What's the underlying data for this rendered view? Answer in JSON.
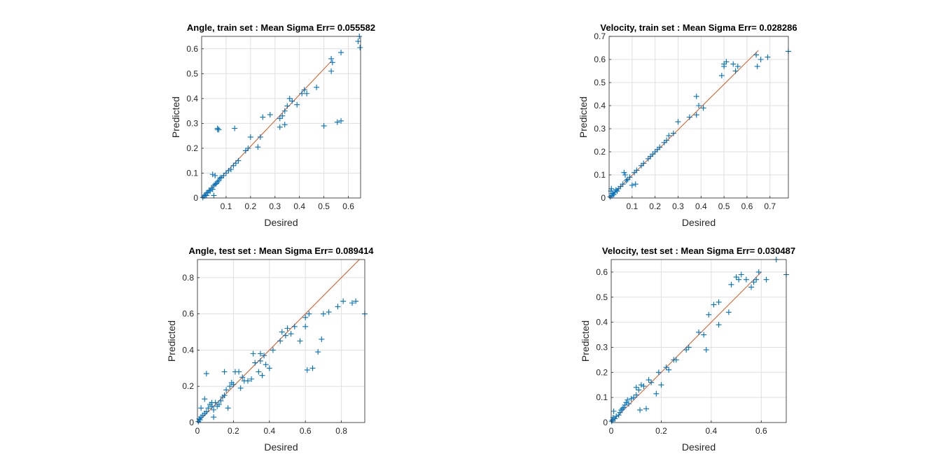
{
  "colors": {
    "marker": "#0072BD",
    "fit_line": "#D95319",
    "axes": "#262626",
    "grid": "#dfdfdf"
  },
  "chart_data": [
    {
      "type": "scatter",
      "title": "Angle, train set :  Mean Sigma Err= 0.055582",
      "xlabel": "Desired",
      "ylabel": "Predicted",
      "xlim": [
        0,
        0.65
      ],
      "ylim": [
        0,
        0.65
      ],
      "xticks": [
        0.1,
        0.2,
        0.3,
        0.4,
        0.5,
        0.6
      ],
      "xtick_labels": [
        "0.1",
        "0.2",
        "0.3",
        "0.4",
        "0.5",
        "0.6"
      ],
      "yticks": [
        0,
        0.1,
        0.2,
        0.3,
        0.4,
        0.5,
        0.6
      ],
      "ytick_labels": [
        "0",
        "0.1",
        "0.2",
        "0.3",
        "0.4",
        "0.5",
        "0.6"
      ],
      "grid": true,
      "marker": "+",
      "fit_line": [
        [
          0,
          0
        ],
        [
          0.53,
          0.55
        ]
      ],
      "points": [
        [
          0.005,
          0.002
        ],
        [
          0.01,
          0.008
        ],
        [
          0.015,
          0.012
        ],
        [
          0.02,
          0.02
        ],
        [
          0.025,
          0.022
        ],
        [
          0.03,
          0.03
        ],
        [
          0.035,
          0.028
        ],
        [
          0.04,
          0.04
        ],
        [
          0.045,
          0.035
        ],
        [
          0.05,
          0.05
        ],
        [
          0.055,
          0.055
        ],
        [
          0.06,
          0.058
        ],
        [
          0.065,
          0.065
        ],
        [
          0.07,
          0.07
        ],
        [
          0.075,
          0.08
        ],
        [
          0.08,
          0.082
        ],
        [
          0.09,
          0.09
        ],
        [
          0.1,
          0.1
        ],
        [
          0.11,
          0.11
        ],
        [
          0.12,
          0.115
        ],
        [
          0.13,
          0.13
        ],
        [
          0.14,
          0.14
        ],
        [
          0.15,
          0.15
        ],
        [
          0.045,
          0.095
        ],
        [
          0.055,
          0.09
        ],
        [
          0.05,
          0.01
        ],
        [
          0.02,
          0.01
        ],
        [
          0.065,
          0.275
        ],
        [
          0.07,
          0.275
        ],
        [
          0.065,
          0.28
        ],
        [
          0.135,
          0.28
        ],
        [
          0.18,
          0.19
        ],
        [
          0.19,
          0.2
        ],
        [
          0.2,
          0.245
        ],
        [
          0.23,
          0.205
        ],
        [
          0.24,
          0.245
        ],
        [
          0.25,
          0.325
        ],
        [
          0.28,
          0.335
        ],
        [
          0.32,
          0.32
        ],
        [
          0.32,
          0.285
        ],
        [
          0.33,
          0.33
        ],
        [
          0.34,
          0.35
        ],
        [
          0.34,
          0.295
        ],
        [
          0.35,
          0.37
        ],
        [
          0.36,
          0.4
        ],
        [
          0.37,
          0.39
        ],
        [
          0.39,
          0.375
        ],
        [
          0.41,
          0.42
        ],
        [
          0.42,
          0.435
        ],
        [
          0.43,
          0.42
        ],
        [
          0.47,
          0.445
        ],
        [
          0.5,
          0.29
        ],
        [
          0.53,
          0.51
        ],
        [
          0.53,
          0.56
        ],
        [
          0.535,
          0.545
        ],
        [
          0.555,
          0.305
        ],
        [
          0.57,
          0.31
        ],
        [
          0.57,
          0.585
        ],
        [
          0.64,
          0.63
        ],
        [
          0.645,
          0.65
        ],
        [
          0.648,
          0.605
        ]
      ]
    },
    {
      "type": "scatter",
      "title": "Velocity, train set :  Mean Sigma Err= 0.028286",
      "xlabel": "Desired",
      "ylabel": "Predicted",
      "xlim": [
        0,
        0.78
      ],
      "ylim": [
        0,
        0.7
      ],
      "xticks": [
        0.1,
        0.2,
        0.3,
        0.4,
        0.5,
        0.6,
        0.7
      ],
      "xtick_labels": [
        "0.1",
        "0.2",
        "0.3",
        "0.4",
        "0.5",
        "0.6",
        "0.7"
      ],
      "yticks": [
        0,
        0.1,
        0.2,
        0.3,
        0.4,
        0.5,
        0.6,
        0.7
      ],
      "ytick_labels": [
        "0",
        "0.1",
        "0.2",
        "0.3",
        "0.4",
        "0.5",
        "0.6",
        "0.7"
      ],
      "grid": true,
      "marker": "+",
      "fit_line": [
        [
          0,
          0
        ],
        [
          0.65,
          0.64
        ]
      ],
      "points": [
        [
          0.005,
          0.005
        ],
        [
          0.008,
          0.03
        ],
        [
          0.01,
          0.04
        ],
        [
          0.012,
          0.01
        ],
        [
          0.015,
          0.02
        ],
        [
          0.02,
          0.015
        ],
        [
          0.025,
          0.025
        ],
        [
          0.03,
          0.035
        ],
        [
          0.035,
          0.03
        ],
        [
          0.04,
          0.04
        ],
        [
          0.05,
          0.05
        ],
        [
          0.06,
          0.06
        ],
        [
          0.065,
          0.11
        ],
        [
          0.07,
          0.1
        ],
        [
          0.075,
          0.075
        ],
        [
          0.08,
          0.08
        ],
        [
          0.09,
          0.09
        ],
        [
          0.1,
          0.055
        ],
        [
          0.11,
          0.11
        ],
        [
          0.115,
          0.06
        ],
        [
          0.12,
          0.12
        ],
        [
          0.14,
          0.14
        ],
        [
          0.15,
          0.15
        ],
        [
          0.17,
          0.17
        ],
        [
          0.18,
          0.18
        ],
        [
          0.19,
          0.19
        ],
        [
          0.2,
          0.2
        ],
        [
          0.21,
          0.21
        ],
        [
          0.22,
          0.22
        ],
        [
          0.24,
          0.24
        ],
        [
          0.25,
          0.25
        ],
        [
          0.26,
          0.27
        ],
        [
          0.28,
          0.28
        ],
        [
          0.3,
          0.33
        ],
        [
          0.35,
          0.35
        ],
        [
          0.38,
          0.44
        ],
        [
          0.38,
          0.36
        ],
        [
          0.39,
          0.4
        ],
        [
          0.41,
          0.39
        ],
        [
          0.49,
          0.53
        ],
        [
          0.5,
          0.58
        ],
        [
          0.51,
          0.59
        ],
        [
          0.5,
          0.57
        ],
        [
          0.54,
          0.58
        ],
        [
          0.55,
          0.55
        ],
        [
          0.56,
          0.57
        ],
        [
          0.64,
          0.62
        ],
        [
          0.645,
          0.57
        ],
        [
          0.66,
          0.6
        ],
        [
          0.69,
          0.61
        ],
        [
          0.78,
          0.635
        ]
      ]
    },
    {
      "type": "scatter",
      "title": "Angle, test set :  Mean Sigma Err= 0.089414",
      "xlabel": "Desired",
      "ylabel": "Predicted",
      "xlim": [
        0,
        0.93
      ],
      "ylim": [
        0,
        0.9
      ],
      "xticks": [
        0,
        0.2,
        0.4,
        0.6,
        0.8
      ],
      "xtick_labels": [
        "0",
        "0.2",
        "0.4",
        "0.6",
        "0.8"
      ],
      "yticks": [
        0,
        0.2,
        0.4,
        0.6,
        0.8
      ],
      "ytick_labels": [
        "0",
        "0.2",
        "0.4",
        "0.6",
        "0.8"
      ],
      "grid": true,
      "marker": "+",
      "fit_line": [
        [
          0,
          0
        ],
        [
          0.91,
          0.91
        ]
      ],
      "points": [
        [
          0.005,
          0.005
        ],
        [
          0.01,
          0.02
        ],
        [
          0.015,
          0.015
        ],
        [
          0.02,
          0.03
        ],
        [
          0.02,
          0.08
        ],
        [
          0.03,
          0.04
        ],
        [
          0.04,
          0.05
        ],
        [
          0.04,
          0.13
        ],
        [
          0.05,
          0.06
        ],
        [
          0.05,
          0.27
        ],
        [
          0.06,
          0.08
        ],
        [
          0.07,
          0.1
        ],
        [
          0.08,
          0.09
        ],
        [
          0.08,
          0.11
        ],
        [
          0.09,
          0.07
        ],
        [
          0.09,
          0.03
        ],
        [
          0.1,
          0.11
        ],
        [
          0.11,
          0.09
        ],
        [
          0.12,
          0.1
        ],
        [
          0.13,
          0.12
        ],
        [
          0.14,
          0.14
        ],
        [
          0.15,
          0.28
        ],
        [
          0.15,
          0.15
        ],
        [
          0.16,
          0.18
        ],
        [
          0.17,
          0.08
        ],
        [
          0.18,
          0.2
        ],
        [
          0.19,
          0.22
        ],
        [
          0.2,
          0.21
        ],
        [
          0.21,
          0.28
        ],
        [
          0.23,
          0.28
        ],
        [
          0.24,
          0.19
        ],
        [
          0.25,
          0.25
        ],
        [
          0.26,
          0.23
        ],
        [
          0.28,
          0.23
        ],
        [
          0.3,
          0.24
        ],
        [
          0.31,
          0.38
        ],
        [
          0.32,
          0.33
        ],
        [
          0.34,
          0.28
        ],
        [
          0.35,
          0.38
        ],
        [
          0.35,
          0.34
        ],
        [
          0.36,
          0.26
        ],
        [
          0.37,
          0.37
        ],
        [
          0.38,
          0.32
        ],
        [
          0.4,
          0.3
        ],
        [
          0.42,
          0.4
        ],
        [
          0.46,
          0.45
        ],
        [
          0.47,
          0.5
        ],
        [
          0.49,
          0.48
        ],
        [
          0.5,
          0.52
        ],
        [
          0.52,
          0.49
        ],
        [
          0.54,
          0.53
        ],
        [
          0.57,
          0.45
        ],
        [
          0.6,
          0.58
        ],
        [
          0.6,
          0.53
        ],
        [
          0.61,
          0.29
        ],
        [
          0.64,
          0.3
        ],
        [
          0.62,
          0.6
        ],
        [
          0.67,
          0.39
        ],
        [
          0.69,
          0.46
        ],
        [
          0.7,
          0.6
        ],
        [
          0.73,
          0.61
        ],
        [
          0.78,
          0.64
        ],
        [
          0.81,
          0.67
        ],
        [
          0.86,
          0.66
        ],
        [
          0.88,
          0.67
        ],
        [
          0.93,
          0.6
        ]
      ]
    },
    {
      "type": "scatter",
      "title": "Velocity, test set :  Mean Sigma Err= 0.030487",
      "xlabel": "Desired",
      "ylabel": "Predicted",
      "xlim": [
        0,
        0.7
      ],
      "ylim": [
        0,
        0.65
      ],
      "xticks": [
        0,
        0.2,
        0.4,
        0.6
      ],
      "xtick_labels": [
        "0",
        "0.2",
        "0.4",
        "0.6"
      ],
      "yticks": [
        0,
        0.1,
        0.2,
        0.3,
        0.4,
        0.5,
        0.6
      ],
      "ytick_labels": [
        "0",
        "0.1",
        "0.2",
        "0.3",
        "0.4",
        "0.5",
        "0.6"
      ],
      "grid": true,
      "marker": "+",
      "fit_line": [
        [
          0,
          0
        ],
        [
          0.6,
          0.6
        ]
      ],
      "points": [
        [
          0.002,
          0.005
        ],
        [
          0.005,
          0.01
        ],
        [
          0.008,
          0.02
        ],
        [
          0.01,
          0.045
        ],
        [
          0.015,
          0.015
        ],
        [
          0.02,
          0.025
        ],
        [
          0.03,
          0.03
        ],
        [
          0.035,
          0.04
        ],
        [
          0.04,
          0.05
        ],
        [
          0.045,
          0.055
        ],
        [
          0.05,
          0.06
        ],
        [
          0.055,
          0.07
        ],
        [
          0.06,
          0.08
        ],
        [
          0.065,
          0.09
        ],
        [
          0.07,
          0.075
        ],
        [
          0.08,
          0.095
        ],
        [
          0.09,
          0.1
        ],
        [
          0.1,
          0.11
        ],
        [
          0.1,
          0.14
        ],
        [
          0.11,
          0.13
        ],
        [
          0.115,
          0.05
        ],
        [
          0.12,
          0.15
        ],
        [
          0.13,
          0.145
        ],
        [
          0.14,
          0.055
        ],
        [
          0.15,
          0.17
        ],
        [
          0.16,
          0.16
        ],
        [
          0.18,
          0.115
        ],
        [
          0.19,
          0.2
        ],
        [
          0.2,
          0.15
        ],
        [
          0.22,
          0.22
        ],
        [
          0.23,
          0.21
        ],
        [
          0.25,
          0.25
        ],
        [
          0.26,
          0.25
        ],
        [
          0.3,
          0.29
        ],
        [
          0.31,
          0.3
        ],
        [
          0.35,
          0.36
        ],
        [
          0.37,
          0.35
        ],
        [
          0.38,
          0.29
        ],
        [
          0.39,
          0.43
        ],
        [
          0.41,
          0.47
        ],
        [
          0.43,
          0.48
        ],
        [
          0.43,
          0.39
        ],
        [
          0.47,
          0.44
        ],
        [
          0.48,
          0.55
        ],
        [
          0.5,
          0.58
        ],
        [
          0.51,
          0.57
        ],
        [
          0.52,
          0.59
        ],
        [
          0.54,
          0.57
        ],
        [
          0.56,
          0.54
        ],
        [
          0.57,
          0.56
        ],
        [
          0.58,
          0.57
        ],
        [
          0.59,
          0.6
        ],
        [
          0.62,
          0.57
        ],
        [
          0.66,
          0.65
        ],
        [
          0.7,
          0.59
        ]
      ]
    }
  ]
}
